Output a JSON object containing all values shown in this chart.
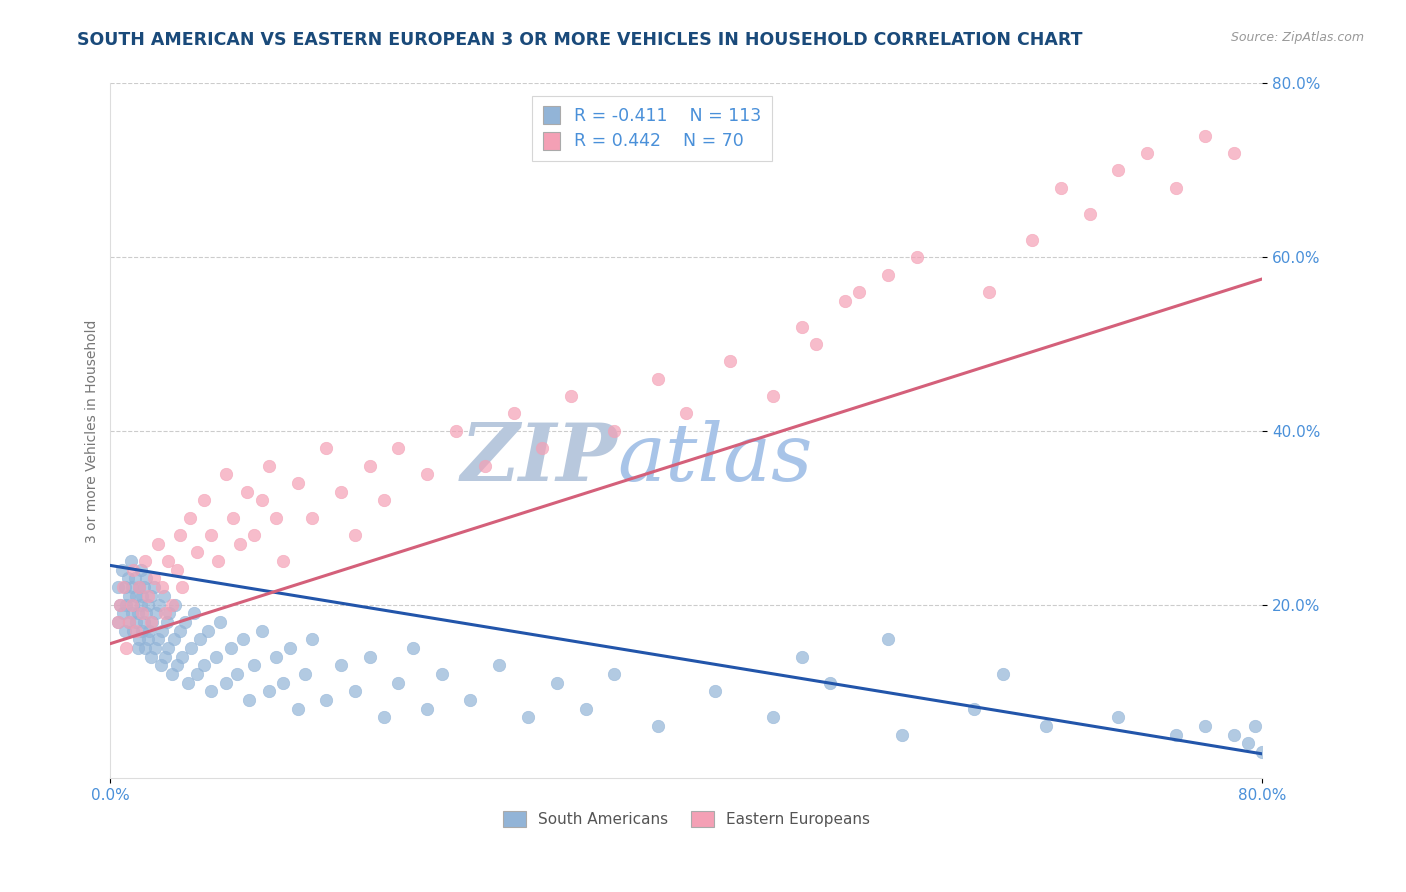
{
  "title": "SOUTH AMERICAN VS EASTERN EUROPEAN 3 OR MORE VEHICLES IN HOUSEHOLD CORRELATION CHART",
  "source": "Source: ZipAtlas.com",
  "ylabel": "3 or more Vehicles in Household",
  "xlim": [
    0.0,
    0.8
  ],
  "ylim": [
    0.0,
    0.8
  ],
  "xtick_labels_bottom": [
    "0.0%",
    "80.0%"
  ],
  "xtick_vals_bottom": [
    0.0,
    0.8
  ],
  "ytick_labels": [
    "20.0%",
    "40.0%",
    "60.0%",
    "80.0%"
  ],
  "ytick_vals": [
    0.2,
    0.4,
    0.6,
    0.8
  ],
  "blue_color": "#92b4d7",
  "pink_color": "#f4a0b5",
  "blue_line_color": "#2255aa",
  "pink_line_color": "#d4607a",
  "title_color": "#1a4a7a",
  "source_color": "#999999",
  "legend_r1": "R = -0.411",
  "legend_n1": "N = 113",
  "legend_r2": "R = 0.442",
  "legend_n2": "N = 70",
  "watermark_zip": "ZIP",
  "watermark_atlas": "atlas",
  "legend_label1": "South Americans",
  "legend_label2": "Eastern Europeans",
  "blue_scatter_x": [
    0.005,
    0.005,
    0.007,
    0.008,
    0.009,
    0.01,
    0.01,
    0.011,
    0.012,
    0.013,
    0.013,
    0.014,
    0.015,
    0.015,
    0.016,
    0.016,
    0.017,
    0.018,
    0.018,
    0.019,
    0.019,
    0.02,
    0.02,
    0.021,
    0.021,
    0.022,
    0.022,
    0.023,
    0.023,
    0.024,
    0.025,
    0.025,
    0.026,
    0.026,
    0.027,
    0.028,
    0.028,
    0.029,
    0.03,
    0.031,
    0.032,
    0.033,
    0.034,
    0.035,
    0.036,
    0.037,
    0.038,
    0.039,
    0.04,
    0.041,
    0.043,
    0.044,
    0.045,
    0.046,
    0.048,
    0.05,
    0.052,
    0.054,
    0.056,
    0.058,
    0.06,
    0.062,
    0.065,
    0.068,
    0.07,
    0.073,
    0.076,
    0.08,
    0.084,
    0.088,
    0.092,
    0.096,
    0.1,
    0.105,
    0.11,
    0.115,
    0.12,
    0.125,
    0.13,
    0.135,
    0.14,
    0.15,
    0.16,
    0.17,
    0.18,
    0.19,
    0.2,
    0.21,
    0.22,
    0.23,
    0.25,
    0.27,
    0.29,
    0.31,
    0.33,
    0.35,
    0.38,
    0.42,
    0.46,
    0.5,
    0.55,
    0.6,
    0.65,
    0.7,
    0.74,
    0.76,
    0.78,
    0.79,
    0.795,
    0.8,
    0.62,
    0.54,
    0.48
  ],
  "blue_scatter_y": [
    0.22,
    0.18,
    0.2,
    0.24,
    0.19,
    0.22,
    0.17,
    0.2,
    0.23,
    0.18,
    0.21,
    0.25,
    0.19,
    0.22,
    0.17,
    0.2,
    0.23,
    0.18,
    0.21,
    0.15,
    0.19,
    0.22,
    0.16,
    0.2,
    0.24,
    0.17,
    0.21,
    0.18,
    0.22,
    0.15,
    0.19,
    0.23,
    0.16,
    0.2,
    0.17,
    0.21,
    0.14,
    0.18,
    0.22,
    0.15,
    0.19,
    0.16,
    0.2,
    0.13,
    0.17,
    0.21,
    0.14,
    0.18,
    0.15,
    0.19,
    0.12,
    0.16,
    0.2,
    0.13,
    0.17,
    0.14,
    0.18,
    0.11,
    0.15,
    0.19,
    0.12,
    0.16,
    0.13,
    0.17,
    0.1,
    0.14,
    0.18,
    0.11,
    0.15,
    0.12,
    0.16,
    0.09,
    0.13,
    0.17,
    0.1,
    0.14,
    0.11,
    0.15,
    0.08,
    0.12,
    0.16,
    0.09,
    0.13,
    0.1,
    0.14,
    0.07,
    0.11,
    0.15,
    0.08,
    0.12,
    0.09,
    0.13,
    0.07,
    0.11,
    0.08,
    0.12,
    0.06,
    0.1,
    0.07,
    0.11,
    0.05,
    0.08,
    0.06,
    0.07,
    0.05,
    0.06,
    0.05,
    0.04,
    0.06,
    0.03,
    0.12,
    0.16,
    0.14
  ],
  "pink_scatter_x": [
    0.005,
    0.007,
    0.009,
    0.011,
    0.013,
    0.015,
    0.016,
    0.018,
    0.02,
    0.022,
    0.024,
    0.026,
    0.028,
    0.03,
    0.033,
    0.036,
    0.038,
    0.04,
    0.043,
    0.046,
    0.048,
    0.05,
    0.055,
    0.06,
    0.065,
    0.07,
    0.075,
    0.08,
    0.085,
    0.09,
    0.095,
    0.1,
    0.105,
    0.11,
    0.115,
    0.12,
    0.13,
    0.14,
    0.15,
    0.16,
    0.17,
    0.18,
    0.19,
    0.2,
    0.22,
    0.24,
    0.26,
    0.28,
    0.3,
    0.32,
    0.35,
    0.38,
    0.4,
    0.43,
    0.46,
    0.49,
    0.52,
    0.48,
    0.51,
    0.54,
    0.56,
    0.61,
    0.64,
    0.66,
    0.68,
    0.7,
    0.72,
    0.74,
    0.76,
    0.78
  ],
  "pink_scatter_y": [
    0.18,
    0.2,
    0.22,
    0.15,
    0.18,
    0.2,
    0.24,
    0.17,
    0.22,
    0.19,
    0.25,
    0.21,
    0.18,
    0.23,
    0.27,
    0.22,
    0.19,
    0.25,
    0.2,
    0.24,
    0.28,
    0.22,
    0.3,
    0.26,
    0.32,
    0.28,
    0.25,
    0.35,
    0.3,
    0.27,
    0.33,
    0.28,
    0.32,
    0.36,
    0.3,
    0.25,
    0.34,
    0.3,
    0.38,
    0.33,
    0.28,
    0.36,
    0.32,
    0.38,
    0.35,
    0.4,
    0.36,
    0.42,
    0.38,
    0.44,
    0.4,
    0.46,
    0.42,
    0.48,
    0.44,
    0.5,
    0.56,
    0.52,
    0.55,
    0.58,
    0.6,
    0.56,
    0.62,
    0.68,
    0.65,
    0.7,
    0.72,
    0.68,
    0.74,
    0.72
  ],
  "blue_trend_x": [
    0.0,
    0.8
  ],
  "blue_trend_y": [
    0.245,
    0.028
  ],
  "pink_trend_x": [
    0.0,
    0.8
  ],
  "pink_trend_y": [
    0.155,
    0.575
  ],
  "grid_color": "#cccccc",
  "watermark_color_zip": "#b8c8dd",
  "watermark_color_atlas": "#a8c4e8",
  "background_color": "#ffffff",
  "tick_color": "#4a90d9",
  "label_color": "#777777"
}
